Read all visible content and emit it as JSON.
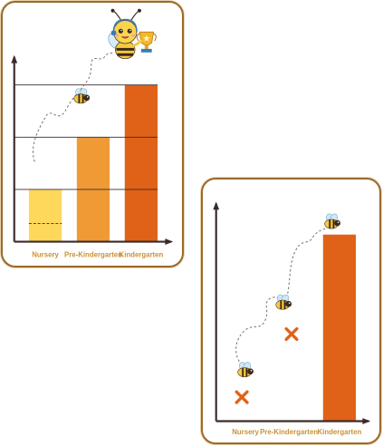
{
  "chart_data": [
    {
      "type": "bar",
      "categories": [
        "Nursery",
        "Pre-Kindergarten",
        "Kindergarten"
      ],
      "values": [
        1,
        2,
        3
      ],
      "ylim": [
        0,
        3.3
      ],
      "grid": false,
      "marked_value": 0.35,
      "colors": {
        "Nursery": "#fdd85a",
        "Pre-Kindergarten": "#ef9a35",
        "Kindergarten": "#e06218",
        "axis": "#3b2b2a",
        "label": "#c99334"
      },
      "markers": [
        "bee-icon",
        "bee-icon",
        "trophy-icon"
      ]
    },
    {
      "type": "bar",
      "categories": [
        "Nursery",
        "Pre-Kindergarten",
        "Kindergarten"
      ],
      "values": [
        0,
        0,
        3
      ],
      "ylim": [
        0,
        3.3
      ],
      "grid": false,
      "colors": {
        "Kindergarten": "#e06218",
        "axis": "#3b2b2a",
        "label": "#c99334",
        "cross": "#e06218"
      },
      "markers": [
        "cross-icon",
        "cross-icon"
      ]
    }
  ]
}
